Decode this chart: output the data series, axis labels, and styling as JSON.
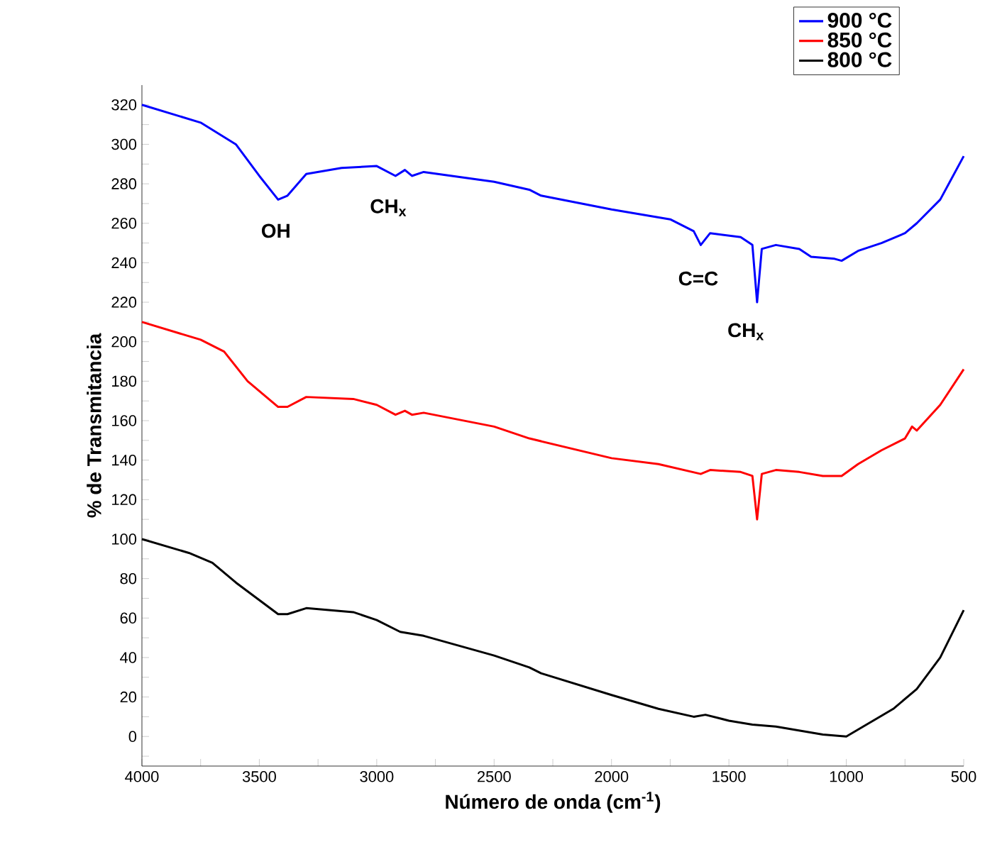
{
  "chart_data": {
    "type": "line",
    "xlabel": "Número de onda (cm$^{-1}$)",
    "ylabel": "% de Transmitancia",
    "xlim": [
      4000,
      500
    ],
    "ylim": [
      -15,
      330
    ],
    "xticks": [
      4000,
      {
        "value": 3750,
        "label": null
      },
      3500,
      {
        "value": 3250,
        "label": null
      },
      3000,
      {
        "value": 2750,
        "label": null
      },
      2500,
      {
        "value": 2250,
        "label": null
      },
      2000,
      {
        "value": 1750,
        "label": null
      },
      1500,
      {
        "value": 1250,
        "label": null
      },
      1000,
      {
        "value": 750,
        "label": null
      },
      500
    ],
    "yticks": [
      {
        "value": -10,
        "label": null
      },
      0,
      {
        "value": 10,
        "label": null
      },
      20,
      {
        "value": 30,
        "label": null
      },
      40,
      {
        "value": 50,
        "label": null
      },
      60,
      {
        "value": 70,
        "label": null
      },
      80,
      {
        "value": 90,
        "label": null
      },
      100,
      {
        "value": 110,
        "label": null
      },
      120,
      {
        "value": 130,
        "label": null
      },
      140,
      {
        "value": 150,
        "label": null
      },
      160,
      {
        "value": 170,
        "label": null
      },
      180,
      {
        "value": 190,
        "label": null
      },
      200,
      {
        "value": 210,
        "label": null
      },
      220,
      {
        "value": 230,
        "label": null
      },
      240,
      {
        "value": 250,
        "label": null
      },
      260,
      {
        "value": 270,
        "label": null
      },
      280,
      {
        "value": 290,
        "label": null
      },
      300,
      {
        "value": 310,
        "label": null
      },
      320
    ],
    "grid": false,
    "legend": "top right",
    "line_style": "solid",
    "series": [
      {
        "name": "900 °C",
        "color": "#0000ff",
        "x": [
          4000,
          3750,
          3600,
          3500,
          3420,
          3380,
          3300,
          3150,
          3000,
          2920,
          2880,
          2850,
          2800,
          2500,
          2350,
          2300,
          2000,
          1750,
          1650,
          1620,
          1580,
          1450,
          1400,
          1380,
          1360,
          1300,
          1200,
          1150,
          1050,
          1020,
          950,
          850,
          750,
          700,
          600,
          500
        ],
        "values": [
          320,
          311,
          300,
          284,
          272,
          274,
          285,
          288,
          289,
          284,
          287,
          284,
          286,
          281,
          277,
          274,
          267,
          262,
          256,
          249,
          255,
          253,
          249,
          220,
          247,
          249,
          247,
          243,
          242,
          241,
          246,
          250,
          255,
          260,
          272,
          294
        ]
      },
      {
        "name": "850 °C",
        "color": "#ff0000",
        "x": [
          4000,
          3750,
          3650,
          3550,
          3420,
          3380,
          3300,
          3100,
          3000,
          2920,
          2880,
          2850,
          2800,
          2500,
          2350,
          2000,
          1800,
          1620,
          1580,
          1450,
          1400,
          1380,
          1360,
          1300,
          1200,
          1100,
          1020,
          950,
          850,
          750,
          720,
          700,
          600,
          500
        ],
        "values": [
          210,
          201,
          195,
          180,
          167,
          167,
          172,
          171,
          168,
          163,
          165,
          163,
          164,
          157,
          151,
          141,
          138,
          133,
          135,
          134,
          132,
          110,
          133,
          135,
          134,
          132,
          132,
          138,
          145,
          151,
          157,
          155,
          168,
          186
        ]
      },
      {
        "name": "800 °C",
        "color": "#000000",
        "x": [
          4000,
          3800,
          3700,
          3600,
          3420,
          3380,
          3300,
          3100,
          3000,
          2900,
          2800,
          2500,
          2350,
          2300,
          2000,
          1800,
          1650,
          1600,
          1500,
          1400,
          1300,
          1100,
          1000,
          900,
          800,
          700,
          600,
          500
        ],
        "values": [
          100,
          93,
          88,
          78,
          62,
          62,
          65,
          63,
          59,
          53,
          51,
          41,
          35,
          32,
          21,
          14,
          10,
          11,
          8,
          6,
          5,
          1,
          0,
          7,
          14,
          24,
          40,
          64
        ]
      }
    ],
    "annotations": [
      "OH",
      "CH$_{x}$",
      "C=C",
      "CH$_{x}$"
    ]
  }
}
